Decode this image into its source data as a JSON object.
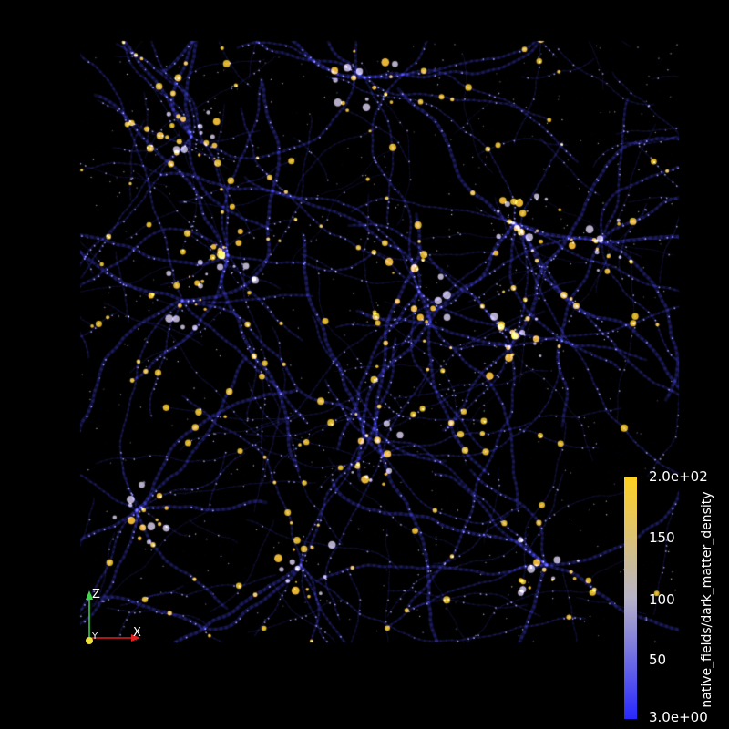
{
  "viewer": {
    "background": "#000000",
    "scene": "dark-matter-cosmic-web-volume-render"
  },
  "axes": {
    "z_label": "Z",
    "x_label": "X",
    "y_label": "Y",
    "z_color": "#3fd64a",
    "x_color": "#e02020",
    "origin_color": "#f0e040"
  },
  "legend": {
    "title": "native_fields/dark_matter_density",
    "tick_max": "2.0e+02",
    "tick_150": "150",
    "tick_100": "100",
    "tick_50": "50",
    "tick_min": "3.0e+00",
    "color_low": "#2828ff",
    "color_mid": "#b7b3c8",
    "color_high": "#ffd020"
  }
}
